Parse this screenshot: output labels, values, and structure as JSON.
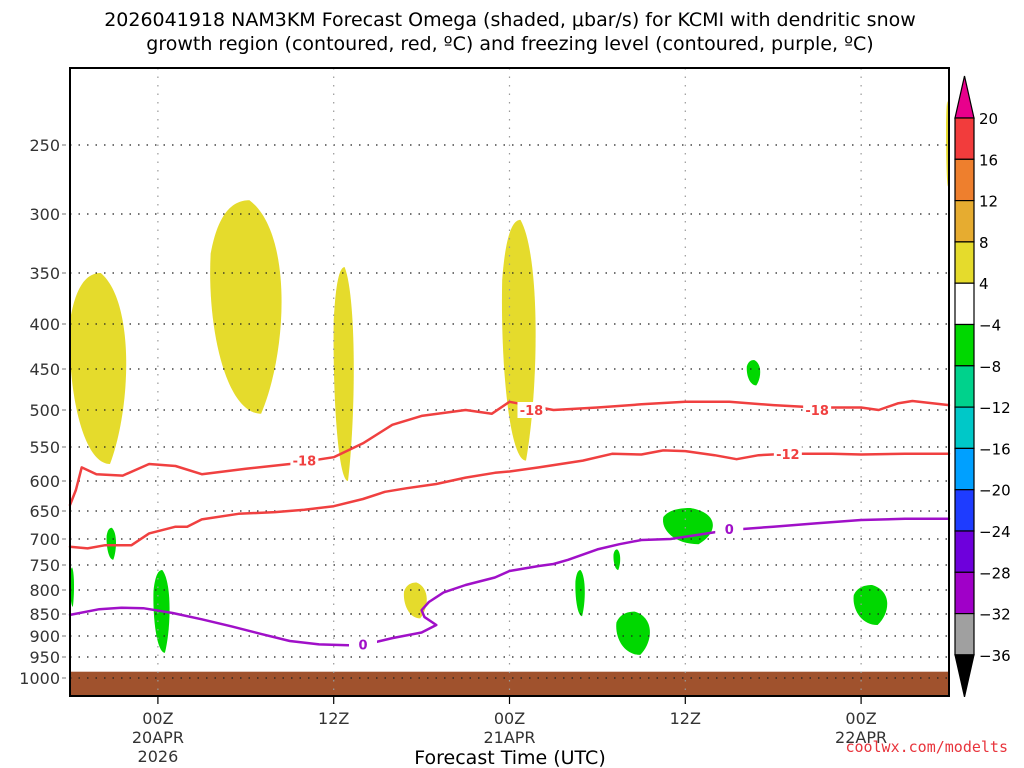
{
  "chart_data": {
    "type": "heatmap",
    "title_line1": "2026041918 NAM3KM Forecast Omega (shaded, μbar/s) for KCMI with dendritic snow",
    "title_line2": "growth region (contoured, red, ºC) and freezing level (contoured, purple, ºC)",
    "xlabel": "Forecast Time (UTC)",
    "ylabel": "",
    "credit": "coolwx.com/modelts",
    "x_unit": "hours since 2026-04-19 18Z",
    "x_range": [
      0,
      60
    ],
    "y_unit": "hPa",
    "y_axis_inverted": true,
    "y_ticks": [
      250,
      300,
      350,
      400,
      450,
      500,
      550,
      600,
      650,
      700,
      750,
      800,
      850,
      900,
      950,
      1000
    ],
    "x_ticks": [
      {
        "hour": 6,
        "lines": [
          "00Z",
          "20APR",
          "2026"
        ]
      },
      {
        "hour": 18,
        "lines": [
          "12Z"
        ]
      },
      {
        "hour": 30,
        "lines": [
          "00Z",
          "21APR"
        ]
      },
      {
        "hour": 42,
        "lines": [
          "12Z"
        ]
      },
      {
        "hour": 54,
        "lines": [
          "00Z",
          "22APR"
        ]
      }
    ],
    "grid": true,
    "colorbar": {
      "placement": "right",
      "labels": [
        "20",
        "16",
        "12",
        "8",
        "4",
        "-4",
        "-8",
        "-12",
        "-16",
        "-20",
        "-24",
        "-28",
        "-32",
        "-36"
      ],
      "bins": [
        {
          "range": ">20",
          "color": "#e8008c"
        },
        {
          "range": "16 to 20",
          "color": "#f23c3c"
        },
        {
          "range": "12 to 16",
          "color": "#ee7f2d"
        },
        {
          "range": "8 to 12",
          "color": "#e6ac30"
        },
        {
          "range": "4 to 8",
          "color": "#e5db2c"
        },
        {
          "range": "-4 to 4",
          "color": "#ffffff"
        },
        {
          "range": "-8 to -4",
          "color": "#00d800"
        },
        {
          "range": "-12 to -8",
          "color": "#00d28c"
        },
        {
          "range": "-16 to -12",
          "color": "#00c8c8"
        },
        {
          "range": "-20 to -16",
          "color": "#00a0ff"
        },
        {
          "range": "-24 to -20",
          "color": "#1e3cff"
        },
        {
          "range": "-28 to -24",
          "color": "#6e00dc"
        },
        {
          "range": "-32 to -28",
          "color": "#a000c8"
        },
        {
          "range": "-36 to -32",
          "color": "#a0a0a0"
        },
        {
          "range": "<-36",
          "color": "#000000"
        }
      ]
    },
    "series": [
      {
        "name": "-18C isotherm",
        "color": "#f04040",
        "label": "-18",
        "label_positions": [
          {
            "hour": 16,
            "p": 570
          },
          {
            "hour": 31.5,
            "p": 500
          },
          {
            "hour": 51,
            "p": 500
          }
        ],
        "points": [
          [
            0,
            640
          ],
          [
            0.4,
            615
          ],
          [
            0.8,
            580
          ],
          [
            1.8,
            590
          ],
          [
            3.6,
            592
          ],
          [
            5.4,
            575
          ],
          [
            7.2,
            578
          ],
          [
            9,
            590
          ],
          [
            12,
            582
          ],
          [
            15,
            575
          ],
          [
            18,
            565
          ],
          [
            20,
            545
          ],
          [
            22,
            520
          ],
          [
            24,
            508
          ],
          [
            27,
            500
          ],
          [
            28.8,
            505
          ],
          [
            30,
            490
          ],
          [
            33,
            500
          ],
          [
            36,
            497
          ],
          [
            39,
            493
          ],
          [
            42,
            490
          ],
          [
            45,
            490
          ],
          [
            48,
            494
          ],
          [
            51,
            497
          ],
          [
            54,
            497
          ],
          [
            55.2,
            500
          ],
          [
            56.5,
            492
          ],
          [
            57.5,
            489
          ],
          [
            60,
            494
          ]
        ]
      },
      {
        "name": "-12C isotherm",
        "color": "#f04040",
        "label": "-12",
        "label_positions": [
          {
            "hour": 49,
            "p": 560
          }
        ],
        "points": [
          [
            0,
            715
          ],
          [
            1.2,
            718
          ],
          [
            2.4,
            712
          ],
          [
            4.2,
            712
          ],
          [
            5.4,
            690
          ],
          [
            7.2,
            678
          ],
          [
            8,
            678
          ],
          [
            9,
            665
          ],
          [
            11.5,
            655
          ],
          [
            14,
            652
          ],
          [
            16,
            648
          ],
          [
            18,
            642
          ],
          [
            20,
            630
          ],
          [
            21.5,
            618
          ],
          [
            23,
            612
          ],
          [
            25,
            605
          ],
          [
            27,
            595
          ],
          [
            29,
            588
          ],
          [
            30,
            586
          ],
          [
            32,
            580
          ],
          [
            33.5,
            575
          ],
          [
            35,
            570
          ],
          [
            37,
            560
          ],
          [
            39,
            561
          ],
          [
            40.5,
            555
          ],
          [
            42,
            556
          ],
          [
            44,
            562
          ],
          [
            45.5,
            568
          ],
          [
            47,
            562
          ],
          [
            49,
            560
          ],
          [
            52,
            560
          ],
          [
            54,
            561
          ],
          [
            57,
            560
          ],
          [
            60,
            560
          ]
        ]
      },
      {
        "name": "0C isotherm (freezing level)",
        "color": "#a010c8",
        "label": "0",
        "label_positions": [
          {
            "hour": 20,
            "p": 920
          },
          {
            "hour": 45,
            "p": 682
          }
        ],
        "points": [
          [
            0,
            852
          ],
          [
            2,
            840
          ],
          [
            3.5,
            837
          ],
          [
            5,
            838
          ],
          [
            7,
            848
          ],
          [
            9,
            862
          ],
          [
            11,
            878
          ],
          [
            13,
            895
          ],
          [
            15,
            912
          ],
          [
            17,
            920
          ],
          [
            19,
            922
          ],
          [
            20,
            922
          ],
          [
            22,
            905
          ],
          [
            24,
            892
          ],
          [
            25,
            875
          ],
          [
            24.2,
            857
          ],
          [
            24,
            842
          ],
          [
            24.5,
            825
          ],
          [
            25.5,
            805
          ],
          [
            27,
            790
          ],
          [
            29,
            775
          ],
          [
            30,
            762
          ],
          [
            32,
            752
          ],
          [
            33,
            748
          ],
          [
            34,
            740
          ],
          [
            36,
            720
          ],
          [
            37.5,
            710
          ],
          [
            39,
            702
          ],
          [
            41,
            700
          ],
          [
            43,
            692
          ],
          [
            45,
            684
          ],
          [
            48,
            678
          ],
          [
            51,
            672
          ],
          [
            54,
            666
          ],
          [
            57,
            664
          ],
          [
            60,
            664
          ]
        ]
      }
    ],
    "shaded_regions": [
      {
        "bin": "4 to 8",
        "color": "#e5db2c",
        "hours": [
          0,
          4.2
        ],
        "p": [
          350,
          575
        ]
      },
      {
        "bin": "4 to 8",
        "color": "#e5db2c",
        "hours": [
          9.6,
          14.9
        ],
        "p": [
          290,
          505
        ]
      },
      {
        "bin": "4 to 8",
        "color": "#e5db2c",
        "hours": [
          18,
          19.5
        ],
        "p": [
          345,
          600
        ]
      },
      {
        "bin": "4 to 8",
        "color": "#e5db2c",
        "hours": [
          29.5,
          32
        ],
        "p": [
          305,
          570
        ]
      },
      {
        "bin": "4 to 8",
        "color": "#e5db2c",
        "hours": [
          22.8,
          24.5
        ],
        "p": [
          785,
          860
        ]
      },
      {
        "bin": "4 to 8",
        "color": "#e5db2c",
        "hours": [
          59.8,
          60
        ],
        "p": [
          220,
          280
        ]
      },
      {
        "bin": "-8 to -4",
        "color": "#00d800",
        "hours": [
          2.5,
          3.2
        ],
        "p": [
          680,
          740
        ]
      },
      {
        "bin": "-8 to -4",
        "color": "#00d800",
        "hours": [
          0,
          0.3
        ],
        "p": [
          755,
          835
        ]
      },
      {
        "bin": "-8 to -4",
        "color": "#00d800",
        "hours": [
          5.7,
          6.9
        ],
        "p": [
          760,
          940
        ]
      },
      {
        "bin": "-8 to -4",
        "color": "#00d800",
        "hours": [
          34.5,
          35.2
        ],
        "p": [
          760,
          855
        ]
      },
      {
        "bin": "-8 to -4",
        "color": "#00d800",
        "hours": [
          37.1,
          37.6
        ],
        "p": [
          720,
          760
        ]
      },
      {
        "bin": "-8 to -4",
        "color": "#00d800",
        "hours": [
          37.3,
          39.8
        ],
        "p": [
          845,
          945
        ]
      },
      {
        "bin": "-8 to -4",
        "color": "#00d800",
        "hours": [
          40.5,
          44.2
        ],
        "p": [
          645,
          710
        ]
      },
      {
        "bin": "-8 to -4",
        "color": "#00d800",
        "hours": [
          46.2,
          47.2
        ],
        "p": [
          440,
          470
        ]
      },
      {
        "bin": "-8 to -4",
        "color": "#00d800",
        "hours": [
          53.5,
          56
        ],
        "p": [
          790,
          875
        ]
      }
    ],
    "terrain": {
      "color": "#a0522d",
      "surface_p": 985
    }
  }
}
